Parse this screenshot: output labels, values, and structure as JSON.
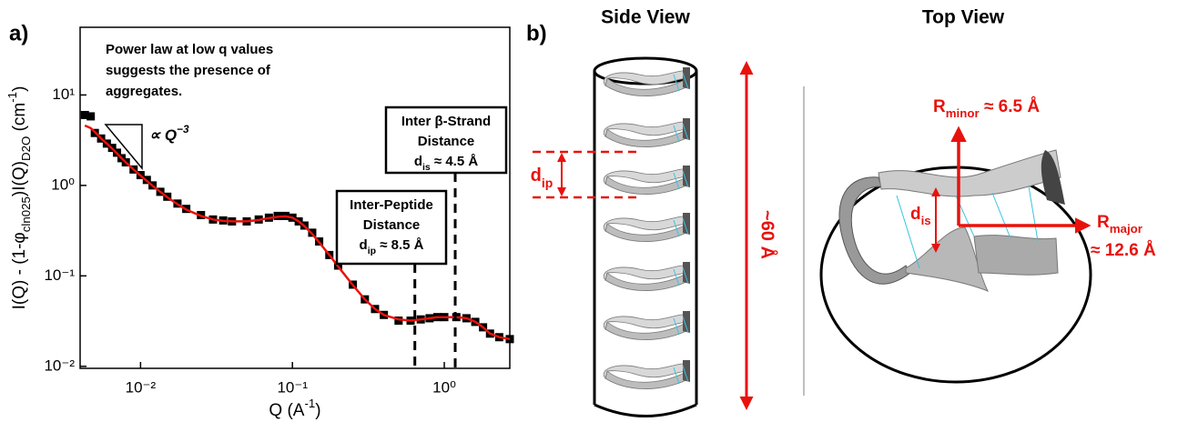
{
  "chart_data": {
    "type": "scatter_line",
    "panel_label": "a)",
    "xlabel": [
      "Q (A",
      "-1",
      ")"
    ],
    "ylabel": [
      "I(Q) - (1-φ",
      "cln025",
      ")I(Q)",
      "D2O",
      " (cm",
      "-1",
      ")"
    ],
    "log_x": true,
    "log_y": true,
    "xlim": [
      0.004,
      2.7
    ],
    "ylim": [
      0.0095,
      56
    ],
    "xticks": [
      {
        "value": 0.01,
        "label": "10⁻²"
      },
      {
        "value": 0.1,
        "label": "10⁻¹"
      },
      {
        "value": 1,
        "label": "10⁰"
      }
    ],
    "yticks": [
      {
        "value": 0.01,
        "label": "10⁻²"
      },
      {
        "value": 0.1,
        "label": "10⁻¹"
      },
      {
        "value": 1,
        "label": "10⁰"
      },
      {
        "value": 10,
        "label": "10¹"
      }
    ],
    "x": [
      0.0043,
      0.0047,
      0.005,
      0.0055,
      0.006,
      0.0065,
      0.007,
      0.0075,
      0.008,
      0.009,
      0.01,
      0.011,
      0.012,
      0.0135,
      0.015,
      0.0175,
      0.02,
      0.025,
      0.03,
      0.035,
      0.04,
      0.05,
      0.06,
      0.07,
      0.08,
      0.09,
      0.1,
      0.11,
      0.12,
      0.135,
      0.15,
      0.175,
      0.2,
      0.25,
      0.3,
      0.35,
      0.4,
      0.5,
      0.6,
      0.7,
      0.8,
      0.9,
      1.0,
      1.2,
      1.4,
      1.6,
      1.8,
      2.0,
      2.3,
      2.7
    ],
    "series": [
      {
        "color": "#000000",
        "values": [
          6,
          5.8,
          3.8,
          3.3,
          2.9,
          2.6,
          2.3,
          2.0,
          1.8,
          1.5,
          1.3,
          1.15,
          1.0,
          0.85,
          0.75,
          0.63,
          0.55,
          0.47,
          0.42,
          0.41,
          0.4,
          0.4,
          0.42,
          0.44,
          0.46,
          0.46,
          0.44,
          0.4,
          0.36,
          0.3,
          0.24,
          0.17,
          0.13,
          0.08,
          0.055,
          0.043,
          0.037,
          0.032,
          0.032,
          0.033,
          0.034,
          0.035,
          0.035,
          0.035,
          0.034,
          0.031,
          0.027,
          0.023,
          0.021,
          0.02
        ]
      },
      {
        "color": "#e8120c",
        "values": [
          4.6,
          4.3,
          3.9,
          3.3,
          2.9,
          2.55,
          2.25,
          2.0,
          1.8,
          1.5,
          1.28,
          1.12,
          0.99,
          0.85,
          0.74,
          0.62,
          0.54,
          0.46,
          0.42,
          0.405,
          0.4,
          0.4,
          0.415,
          0.435,
          0.45,
          0.455,
          0.44,
          0.4,
          0.355,
          0.29,
          0.235,
          0.17,
          0.127,
          0.079,
          0.055,
          0.043,
          0.037,
          0.033,
          0.032,
          0.033,
          0.034,
          0.035,
          0.035,
          0.035,
          0.034,
          0.031,
          0.027,
          0.023,
          0.021,
          0.02
        ]
      }
    ],
    "annotation": [
      "Power law at low q values",
      "suggests the presence of",
      "aggregates."
    ],
    "power_law": [
      "∝ ",
      "Q",
      "−3"
    ],
    "markers": [
      0.64,
      1.18
    ],
    "peptide_box": {
      "lines": [
        "Inter-Peptide",
        "Distance"
      ],
      "label": [
        "d",
        "ip",
        " ≈ 8.5 Å"
      ]
    },
    "strand_box": {
      "lines": [
        "Inter β-Strand",
        "Distance"
      ],
      "label": [
        "d",
        "is",
        " ≈ 4.5 Å"
      ]
    }
  },
  "diagram": {
    "panel_label": "b)",
    "side_view": {
      "title": "Side View",
      "d_ip": [
        "d",
        "ip"
      ],
      "height": "~60 Å"
    },
    "top_view": {
      "title": "Top View",
      "r_minor": [
        "R",
        "minor",
        " ≈ 6.5 Å"
      ],
      "r_major": [
        "R",
        "major"
      ],
      "r_major_value": "≈ 12.6 Å",
      "d_is": [
        "d",
        "is"
      ]
    }
  }
}
